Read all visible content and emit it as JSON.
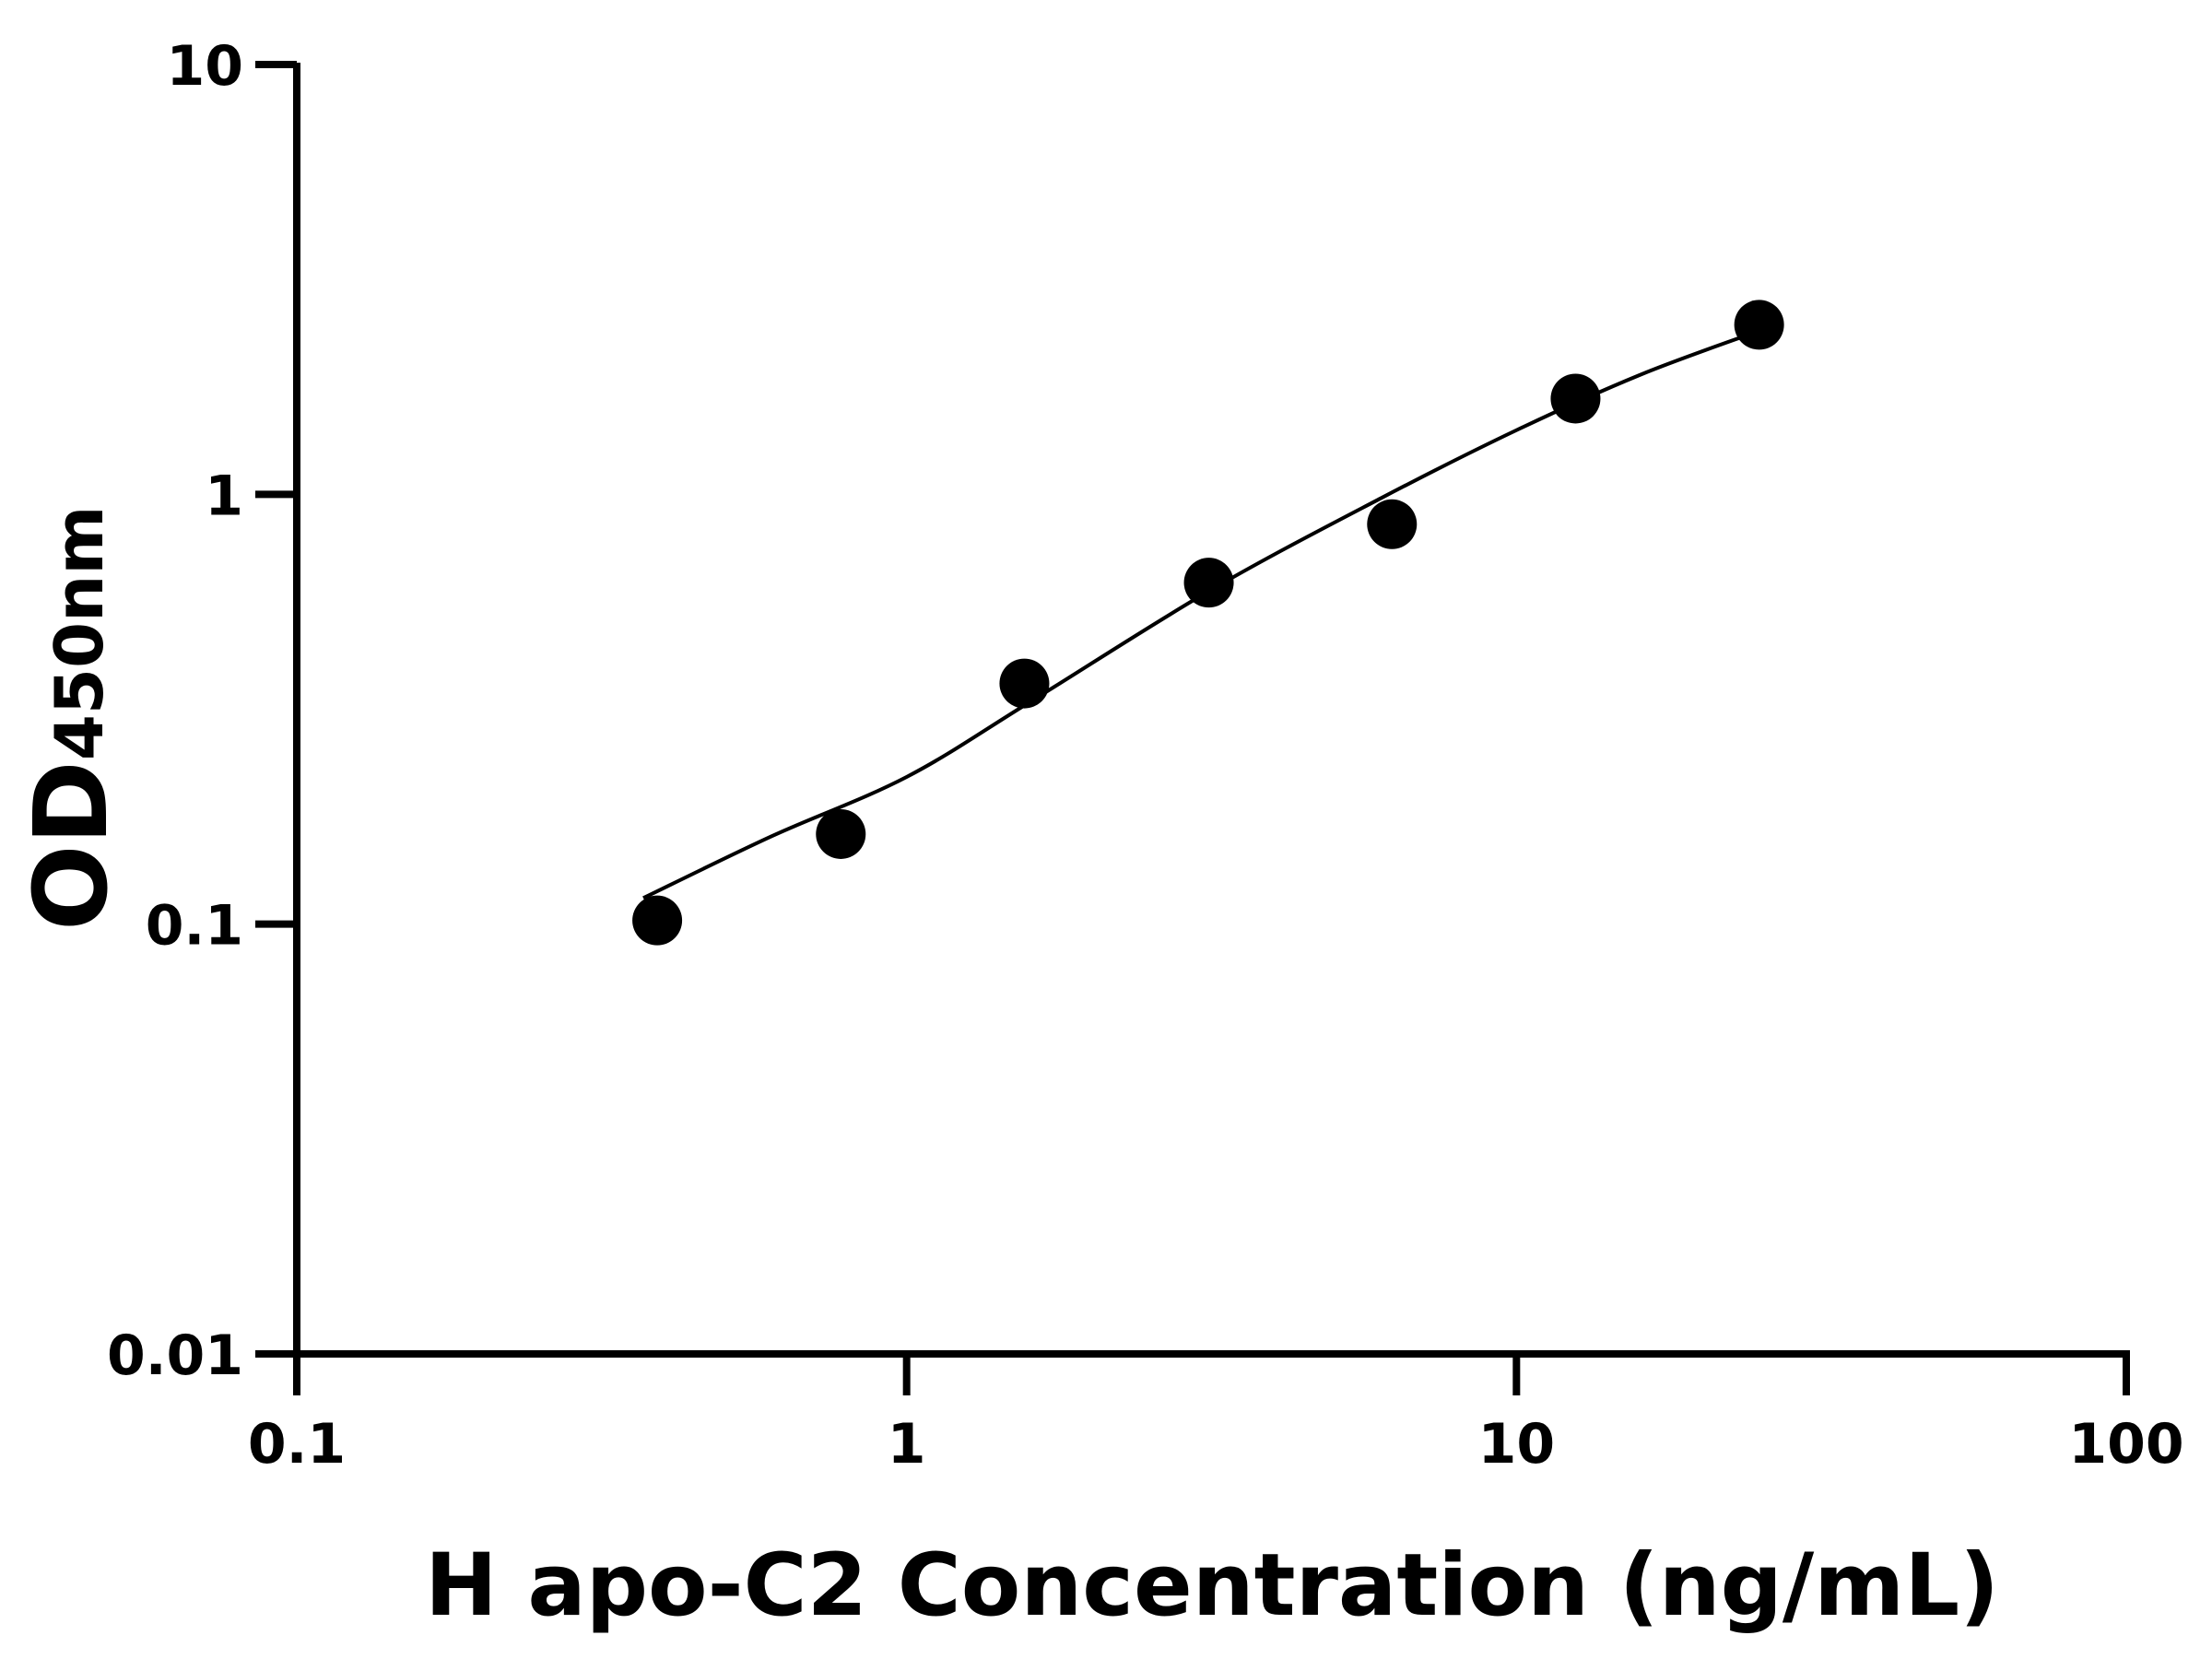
{
  "chart_data": {
    "type": "scatter",
    "xlabel": "H apo-C2 Concentration (ng/mL)",
    "ylabel_main": "OD",
    "ylabel_sub": "450nm",
    "xscale": "log",
    "yscale": "log",
    "xlim": [
      0.1,
      100
    ],
    "ylim": [
      0.01,
      10
    ],
    "xticks": [
      "0.1",
      "1",
      "10",
      "100"
    ],
    "yticks": [
      "0.01",
      "0.1",
      "1",
      "10"
    ],
    "grid": false,
    "points": {
      "x": [
        0.39,
        0.78,
        1.56,
        3.13,
        6.25,
        12.5,
        25
      ],
      "y": [
        0.102,
        0.162,
        0.363,
        0.623,
        0.852,
        1.67,
        2.48
      ]
    },
    "fit_curve": {
      "x": [
        0.37,
        0.6,
        1,
        1.6,
        3.16,
        6,
        10,
        16,
        25
      ],
      "y": [
        0.115,
        0.16,
        0.22,
        0.33,
        0.6,
        0.98,
        1.41,
        1.9,
        2.4
      ]
    },
    "colors": {
      "marker": "#000000",
      "line": "#000000"
    }
  }
}
